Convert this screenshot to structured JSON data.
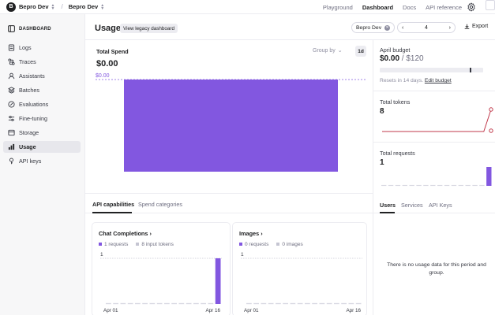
{
  "topbar": {
    "org_initial": "B",
    "org_name": "Bepro Dev",
    "project_name": "Bepro Dev",
    "nav": [
      "Playground",
      "Dashboard",
      "Docs",
      "API reference"
    ]
  },
  "sidebar": {
    "heading": "DASHBOARD",
    "items": [
      {
        "label": "Logs",
        "icon": "logs-icon"
      },
      {
        "label": "Traces",
        "icon": "traces-icon"
      },
      {
        "label": "Assistants",
        "icon": "assistants-icon"
      },
      {
        "label": "Batches",
        "icon": "batches-icon"
      },
      {
        "label": "Evaluations",
        "icon": "evaluations-icon"
      },
      {
        "label": "Fine-tuning",
        "icon": "fine-tuning-icon"
      },
      {
        "label": "Storage",
        "icon": "storage-icon"
      },
      {
        "label": "Usage",
        "icon": "usage-icon",
        "active": true
      },
      {
        "label": "API keys",
        "icon": "api-keys-icon"
      }
    ]
  },
  "header": {
    "title": "Usage",
    "legacy_button": "View legacy dashboard",
    "project_filter": "Bepro Dev",
    "date_value": "4",
    "export_label": "Export"
  },
  "spend": {
    "label": "Total Spend",
    "value": "$0.00",
    "group_by": "Group by",
    "interval": "1d"
  },
  "chart_data": [
    {
      "type": "bar",
      "title": "Total Spend",
      "categories": [
        ""
      ],
      "values": [
        0.0
      ],
      "reference_line": {
        "label": "$0.00",
        "value": 0.0
      },
      "color": "#8257e0"
    },
    {
      "type": "bar",
      "title": "Chat Completions",
      "x": [
        "Apr 01",
        "Apr 02",
        "Apr 03",
        "Apr 04",
        "Apr 05",
        "Apr 06",
        "Apr 07",
        "Apr 08",
        "Apr 09",
        "Apr 10",
        "Apr 11",
        "Apr 12",
        "Apr 13",
        "Apr 14",
        "Apr 15",
        "Apr 16"
      ],
      "series": [
        {
          "name": "1 requests",
          "values": [
            0,
            0,
            0,
            0,
            0,
            0,
            0,
            0,
            0,
            0,
            0,
            0,
            0,
            0,
            0,
            1
          ],
          "color": "#8257e0"
        }
      ],
      "y_tick_top": "1",
      "x_tick_labels": [
        "Apr 01",
        "Apr 16"
      ]
    },
    {
      "type": "bar",
      "title": "Images",
      "x": [
        "Apr 01",
        "Apr 02",
        "Apr 03",
        "Apr 04",
        "Apr 05",
        "Apr 06",
        "Apr 07",
        "Apr 08",
        "Apr 09",
        "Apr 10",
        "Apr 11",
        "Apr 12",
        "Apr 13",
        "Apr 14",
        "Apr 15",
        "Apr 16"
      ],
      "series": [
        {
          "name": "0 requests",
          "values": [
            0,
            0,
            0,
            0,
            0,
            0,
            0,
            0,
            0,
            0,
            0,
            0,
            0,
            0,
            0,
            0
          ],
          "color": "#8257e0"
        }
      ],
      "y_tick_top": "1",
      "x_tick_labels": [
        "Apr 01",
        "Apr 16"
      ]
    },
    {
      "type": "line",
      "title": "Total tokens",
      "values": [
        0,
        0,
        0,
        0,
        0,
        0,
        0,
        0,
        0,
        0,
        0,
        0,
        0,
        0,
        0,
        8
      ],
      "color": "#c0394b"
    },
    {
      "type": "bar",
      "title": "Total requests",
      "values": [
        0,
        0,
        0,
        0,
        0,
        0,
        0,
        0,
        0,
        0,
        0,
        0,
        0,
        0,
        0,
        1
      ],
      "color": "#8257e0"
    }
  ],
  "tabs": {
    "capabilities": "API capabilities",
    "spend_categories": "Spend categories"
  },
  "cards": [
    {
      "title": "Chat Completions",
      "legend": [
        "1 requests",
        "8 input tokens"
      ],
      "x_start": "Apr 01",
      "x_end": "Apr 16",
      "y_top": "1"
    },
    {
      "title": "Images",
      "legend": [
        "0 requests",
        "0 images"
      ],
      "x_start": "Apr 01",
      "x_end": "Apr 16",
      "y_top": "1"
    }
  ],
  "budget": {
    "title": "April budget",
    "spent": "$0.00",
    "limit": "$120",
    "usage_fraction": 0.0,
    "reset_note": "Resets in 14 days.",
    "edit_link": "Edit budget"
  },
  "tokens": {
    "label": "Total tokens",
    "value": "8"
  },
  "requests": {
    "label": "Total requests",
    "value": "1"
  },
  "right_tabs": [
    "Users",
    "Services",
    "API Keys"
  ],
  "empty_message": "There is no usage data for this period and group.",
  "colors": {
    "accent": "#8257e0",
    "tokens_line": "#c0394b"
  }
}
